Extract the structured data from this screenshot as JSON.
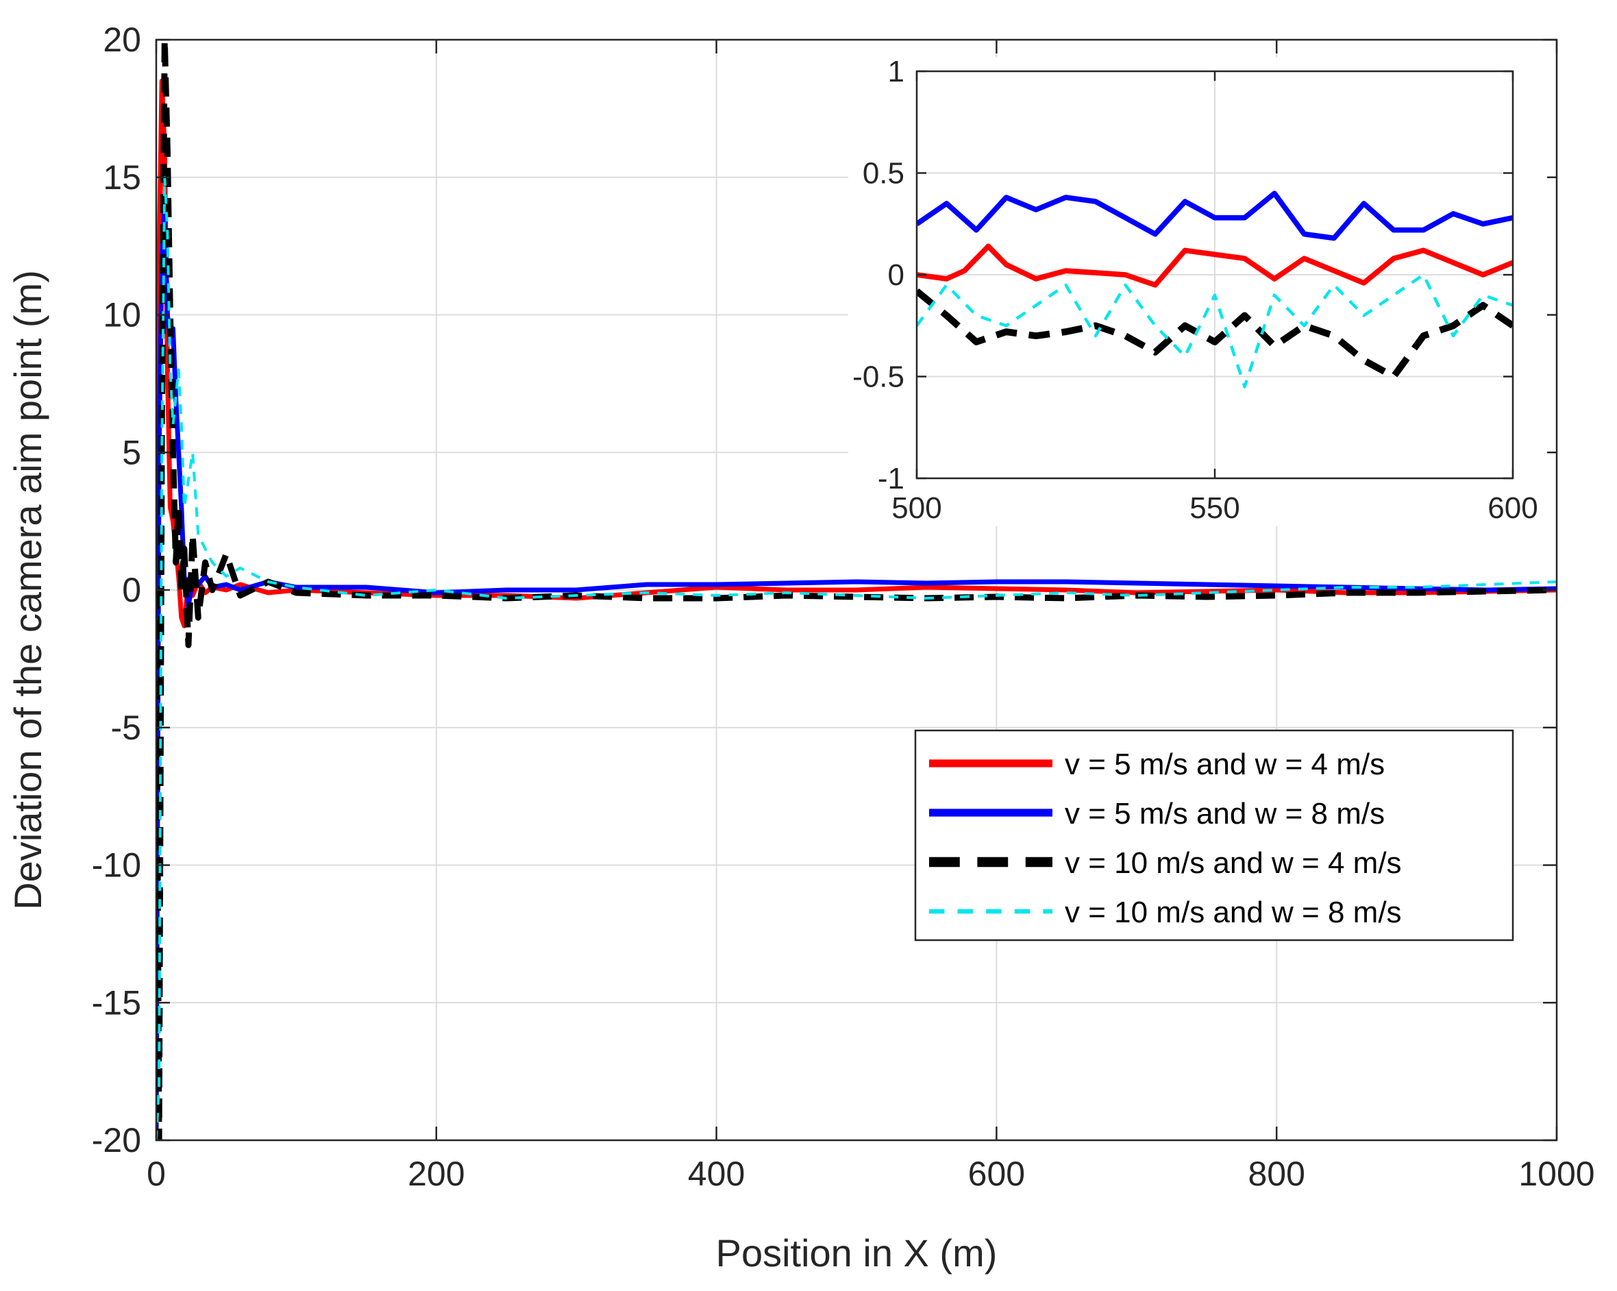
{
  "chart_data": [
    {
      "type": "line",
      "name": "main",
      "title": "",
      "xlabel": "Position in X (m)",
      "ylabel": "Deviation of the camera aim point (m)",
      "xlim": [
        0,
        1000
      ],
      "ylim": [
        -20,
        20
      ],
      "xticks": [
        0,
        200,
        400,
        600,
        800,
        1000
      ],
      "yticks": [
        -20,
        -15,
        -10,
        -5,
        0,
        5,
        10,
        15,
        20
      ],
      "xtick_labels": [
        "0",
        "200",
        "400",
        "600",
        "800",
        "1000"
      ],
      "ytick_labels": [
        "-20",
        "-15",
        "-10",
        "-5",
        "0",
        "5",
        "10",
        "15",
        "20"
      ],
      "grid": true,
      "legend_position": "lower-right",
      "series": [
        {
          "name": "v = 5 m/s and w = 4 m/s",
          "color": "#ff0000",
          "style": "solid",
          "x": [
            0,
            2,
            4,
            6,
            8,
            10,
            12,
            14,
            16,
            18,
            20,
            23,
            26,
            30,
            35,
            40,
            50,
            60,
            80,
            100,
            150,
            200,
            250,
            300,
            350,
            400,
            450,
            500,
            550,
            600,
            650,
            700,
            750,
            800,
            850,
            900,
            950,
            1000
          ],
          "y": [
            0,
            12,
            18.5,
            16,
            8,
            3,
            2.5,
            1.5,
            0.5,
            -1,
            -1.3,
            0.4,
            -0.2,
            0.3,
            -0.1,
            0.1,
            0,
            0.2,
            -0.1,
            0,
            -0.1,
            -0.2,
            -0.2,
            -0.3,
            -0.1,
            0.1,
            0,
            0,
            0.1,
            0.05,
            0,
            -0.1,
            -0.05,
            0,
            -0.1,
            -0.1,
            -0.05,
            0
          ]
        },
        {
          "name": "v = 5 m/s and w = 8 m/s",
          "color": "#0000ff",
          "style": "solid",
          "x": [
            0,
            2,
            4,
            6,
            8,
            10,
            12,
            14,
            16,
            18,
            20,
            23,
            26,
            30,
            35,
            40,
            50,
            60,
            80,
            100,
            150,
            200,
            250,
            300,
            350,
            400,
            450,
            500,
            550,
            600,
            650,
            700,
            750,
            800,
            850,
            900,
            950,
            1000
          ],
          "y": [
            -20,
            5,
            12,
            14,
            10,
            9,
            9.5,
            7,
            5,
            3,
            0.5,
            -0.6,
            0.4,
            0.2,
            0.5,
            0.1,
            0.2,
            0,
            0.3,
            0.1,
            0.1,
            -0.1,
            0,
            0,
            0.2,
            0.2,
            0.25,
            0.3,
            0.25,
            0.3,
            0.3,
            0.25,
            0.2,
            0.15,
            0.1,
            0.05,
            0,
            0.05
          ]
        },
        {
          "name": "v = 10 m/s and w = 4 m/s",
          "color": "#000000",
          "style": "dashed",
          "x": [
            0,
            2,
            4,
            6,
            8,
            10,
            12,
            14,
            16,
            18,
            20,
            23,
            26,
            30,
            35,
            40,
            50,
            60,
            80,
            100,
            150,
            200,
            250,
            300,
            350,
            400,
            450,
            500,
            550,
            600,
            650,
            700,
            750,
            800,
            850,
            900,
            950,
            1000
          ],
          "y": [
            0,
            -20,
            6,
            20,
            16,
            10,
            5,
            1,
            3,
            0,
            1.5,
            -2,
            2,
            -1,
            1,
            0,
            1.3,
            -0.2,
            0.3,
            -0.1,
            -0.2,
            -0.2,
            -0.3,
            -0.2,
            -0.3,
            -0.3,
            -0.2,
            -0.25,
            -0.3,
            -0.25,
            -0.3,
            -0.2,
            -0.25,
            -0.2,
            -0.1,
            -0.1,
            -0.05,
            0
          ]
        },
        {
          "name": "v = 10 m/s and w = 8 m/s",
          "color": "#00e5ee",
          "style": "dotted-dash",
          "x": [
            0,
            2,
            4,
            6,
            8,
            10,
            12,
            14,
            16,
            18,
            20,
            23,
            26,
            30,
            35,
            40,
            50,
            60,
            80,
            100,
            150,
            200,
            250,
            300,
            350,
            400,
            450,
            500,
            550,
            600,
            650,
            700,
            750,
            800,
            850,
            900,
            950,
            1000
          ],
          "y": [
            -20,
            -18,
            5,
            15,
            13,
            8,
            6,
            7,
            8,
            6,
            3,
            4,
            5,
            2,
            1.5,
            1,
            0.5,
            0.8,
            0.3,
            0.1,
            -0.2,
            0,
            -0.3,
            -0.2,
            -0.1,
            -0.2,
            -0.1,
            -0.2,
            -0.3,
            -0.2,
            -0.1,
            -0.2,
            -0.1,
            0,
            0.1,
            0.1,
            0.2,
            0.3
          ]
        }
      ]
    },
    {
      "type": "line",
      "name": "inset",
      "title": "",
      "xlabel": "",
      "ylabel": "",
      "xlim": [
        500,
        600
      ],
      "ylim": [
        -1,
        1
      ],
      "xticks": [
        500,
        550,
        600
      ],
      "yticks": [
        -1,
        -0.5,
        0,
        0.5,
        1
      ],
      "xtick_labels": [
        "500",
        "550",
        "600"
      ],
      "ytick_labels": [
        "-1",
        "-0.5",
        "0",
        "0.5",
        "1"
      ],
      "grid": true,
      "series": [
        {
          "name": "v = 5 m/s and w = 4 m/s",
          "color": "#ff0000",
          "style": "solid",
          "x": [
            500,
            505,
            508,
            512,
            515,
            520,
            525,
            530,
            535,
            540,
            545,
            550,
            555,
            560,
            565,
            570,
            575,
            580,
            585,
            590,
            595,
            600
          ],
          "y": [
            0,
            -0.02,
            0.02,
            0.14,
            0.05,
            -0.02,
            0.02,
            0.01,
            0,
            -0.05,
            0.12,
            0.1,
            0.08,
            -0.02,
            0.08,
            0.02,
            -0.04,
            0.08,
            0.12,
            0.06,
            0,
            0.06
          ]
        },
        {
          "name": "v = 5 m/s and w = 8 m/s",
          "color": "#0000ff",
          "style": "solid",
          "x": [
            500,
            505,
            510,
            515,
            520,
            525,
            530,
            535,
            540,
            545,
            550,
            555,
            560,
            565,
            570,
            575,
            580,
            585,
            590,
            595,
            600
          ],
          "y": [
            0.25,
            0.35,
            0.22,
            0.38,
            0.32,
            0.38,
            0.36,
            0.28,
            0.2,
            0.36,
            0.28,
            0.28,
            0.4,
            0.2,
            0.18,
            0.35,
            0.22,
            0.22,
            0.3,
            0.25,
            0.28
          ]
        },
        {
          "name": "v = 10 m/s and w = 4 m/s",
          "color": "#000000",
          "style": "dashed",
          "x": [
            500,
            505,
            510,
            515,
            520,
            525,
            530,
            535,
            540,
            545,
            550,
            555,
            560,
            565,
            570,
            575,
            580,
            585,
            590,
            595,
            600
          ],
          "y": [
            -0.08,
            -0.2,
            -0.33,
            -0.28,
            -0.3,
            -0.28,
            -0.25,
            -0.3,
            -0.38,
            -0.25,
            -0.33,
            -0.2,
            -0.35,
            -0.25,
            -0.3,
            -0.42,
            -0.5,
            -0.3,
            -0.25,
            -0.15,
            -0.25
          ]
        },
        {
          "name": "v = 10 m/s and w = 8 m/s",
          "color": "#00e5ee",
          "style": "dotted-dash",
          "x": [
            500,
            505,
            510,
            515,
            520,
            525,
            530,
            535,
            540,
            545,
            550,
            555,
            560,
            565,
            570,
            575,
            580,
            585,
            590,
            595,
            600
          ],
          "y": [
            -0.25,
            -0.05,
            -0.2,
            -0.25,
            -0.15,
            -0.05,
            -0.3,
            -0.05,
            -0.25,
            -0.4,
            -0.1,
            -0.55,
            -0.1,
            -0.25,
            -0.05,
            -0.2,
            -0.1,
            0,
            -0.3,
            -0.1,
            -0.15
          ]
        }
      ]
    }
  ]
}
